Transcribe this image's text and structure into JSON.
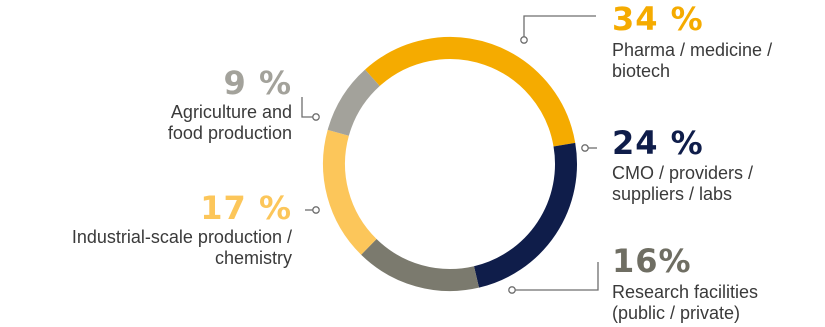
{
  "chart_data": {
    "type": "pie",
    "variant": "donut",
    "title": "",
    "slices": [
      {
        "label": "Pharma / medicine / biotech",
        "value": 34,
        "value_text": "34 %",
        "color": "#f5ab00"
      },
      {
        "label": "CMO / providers / suppliers / labs",
        "value": 24,
        "value_text": "24 %",
        "color": "#0f1d4a"
      },
      {
        "label": "Research facilities (public / private)",
        "value": 16,
        "value_text": "16%",
        "color": "#7b7a6e"
      },
      {
        "label": "Industrial-scale production / chemistry",
        "value": 17,
        "value_text": "17 %",
        "color": "#fcc65a"
      },
      {
        "label": "Agriculture and food production",
        "value": 9,
        "value_text": "9 %",
        "color": "#a3a29b"
      }
    ],
    "label_text_color": "#3a3a3a",
    "legend": "none"
  },
  "labels": {
    "pharma": {
      "line1": "Pharma / medicine /",
      "line2": "biotech"
    },
    "cmo": {
      "line1": "CMO / providers /",
      "line2": "suppliers / labs"
    },
    "research": {
      "line1": "Research facilities",
      "line2": "(public / private)"
    },
    "industrial": {
      "line1": "Industrial-scale production /",
      "line2": "chemistry"
    },
    "agri": {
      "line1": "Agriculture and",
      "line2": "food production"
    }
  }
}
